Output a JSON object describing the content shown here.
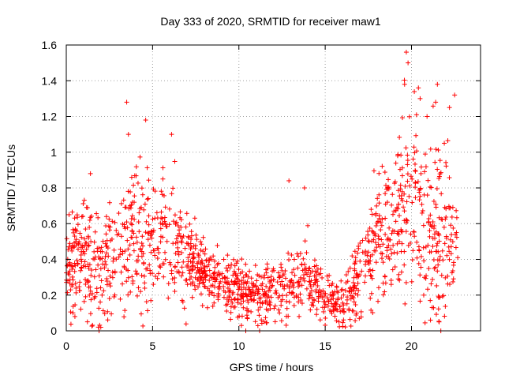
{
  "chart_data": {
    "type": "scatter",
    "title": "Day 333 of 2020, SRMTID for receiver maw1",
    "xlabel": "GPS time / hours",
    "ylabel": "SRMTID / TECUs",
    "xlim": [
      0,
      24
    ],
    "ylim": [
      0,
      1.6
    ],
    "xticks": [
      0,
      5,
      10,
      15,
      20
    ],
    "xtick_labels": [
      "0",
      "5",
      "10",
      "15",
      "20"
    ],
    "yticks": [
      0,
      0.2,
      0.4,
      0.6,
      0.8,
      1.0,
      1.2,
      1.4,
      1.6
    ],
    "ytick_labels": [
      "0",
      "0.2",
      "0.4",
      "0.6",
      "0.8",
      "1",
      "1.2",
      "1.4",
      "1.6"
    ],
    "grid": true,
    "marker": "+",
    "color": "#ff0000",
    "series": [
      {
        "name": "maw1",
        "trend": {
          "x": [
            0,
            1,
            2,
            3,
            4,
            5,
            6,
            7,
            8,
            9,
            10,
            11,
            12,
            13,
            14,
            15,
            16,
            17,
            18,
            19,
            20,
            21,
            22,
            22.7
          ],
          "y": [
            0.38,
            0.42,
            0.36,
            0.45,
            0.52,
            0.5,
            0.55,
            0.42,
            0.32,
            0.26,
            0.24,
            0.2,
            0.2,
            0.25,
            0.3,
            0.18,
            0.15,
            0.3,
            0.55,
            0.6,
            0.8,
            0.5,
            0.55,
            0.45
          ]
        },
        "spread": {
          "x": [
            0,
            1,
            2,
            3,
            4,
            5,
            6,
            7,
            8,
            9,
            10,
            11,
            12,
            13,
            14,
            15,
            16,
            17,
            18,
            19,
            20,
            21,
            22,
            22.7
          ],
          "y": [
            0.14,
            0.15,
            0.15,
            0.17,
            0.2,
            0.18,
            0.16,
            0.12,
            0.09,
            0.07,
            0.08,
            0.08,
            0.08,
            0.1,
            0.1,
            0.07,
            0.07,
            0.12,
            0.18,
            0.22,
            0.28,
            0.25,
            0.22,
            0.14
          ]
        },
        "extremes": [
          {
            "x": 3.5,
            "y": 1.28
          },
          {
            "x": 3.6,
            "y": 1.1
          },
          {
            "x": 4.6,
            "y": 1.18
          },
          {
            "x": 6.1,
            "y": 1.1
          },
          {
            "x": 1.4,
            "y": 0.88
          },
          {
            "x": 2.0,
            "y": 0.02
          },
          {
            "x": 1.9,
            "y": 0.0
          },
          {
            "x": 10.4,
            "y": 0.0
          },
          {
            "x": 11.2,
            "y": 0.0
          },
          {
            "x": 12.9,
            "y": 0.84
          },
          {
            "x": 13.8,
            "y": 0.8
          },
          {
            "x": 19.7,
            "y": 1.56
          },
          {
            "x": 19.8,
            "y": 1.5
          },
          {
            "x": 19.6,
            "y": 1.38
          },
          {
            "x": 20.4,
            "y": 1.36
          },
          {
            "x": 20.5,
            "y": 1.3
          },
          {
            "x": 21.5,
            "y": 1.38
          },
          {
            "x": 21.4,
            "y": 1.28
          },
          {
            "x": 22.5,
            "y": 1.32
          },
          {
            "x": 22.2,
            "y": 1.25
          },
          {
            "x": 20.9,
            "y": 1.2
          },
          {
            "x": 19.2,
            "y": 0.98
          },
          {
            "x": 21.9,
            "y": 1.05
          },
          {
            "x": 21.1,
            "y": 0.06
          },
          {
            "x": 21.6,
            "y": 0.05
          },
          {
            "x": 21.7,
            "y": 0.0
          },
          {
            "x": 15.8,
            "y": 0.05
          },
          {
            "x": 0.5,
            "y": 0.08
          }
        ],
        "point_count": 1500
      }
    ]
  }
}
